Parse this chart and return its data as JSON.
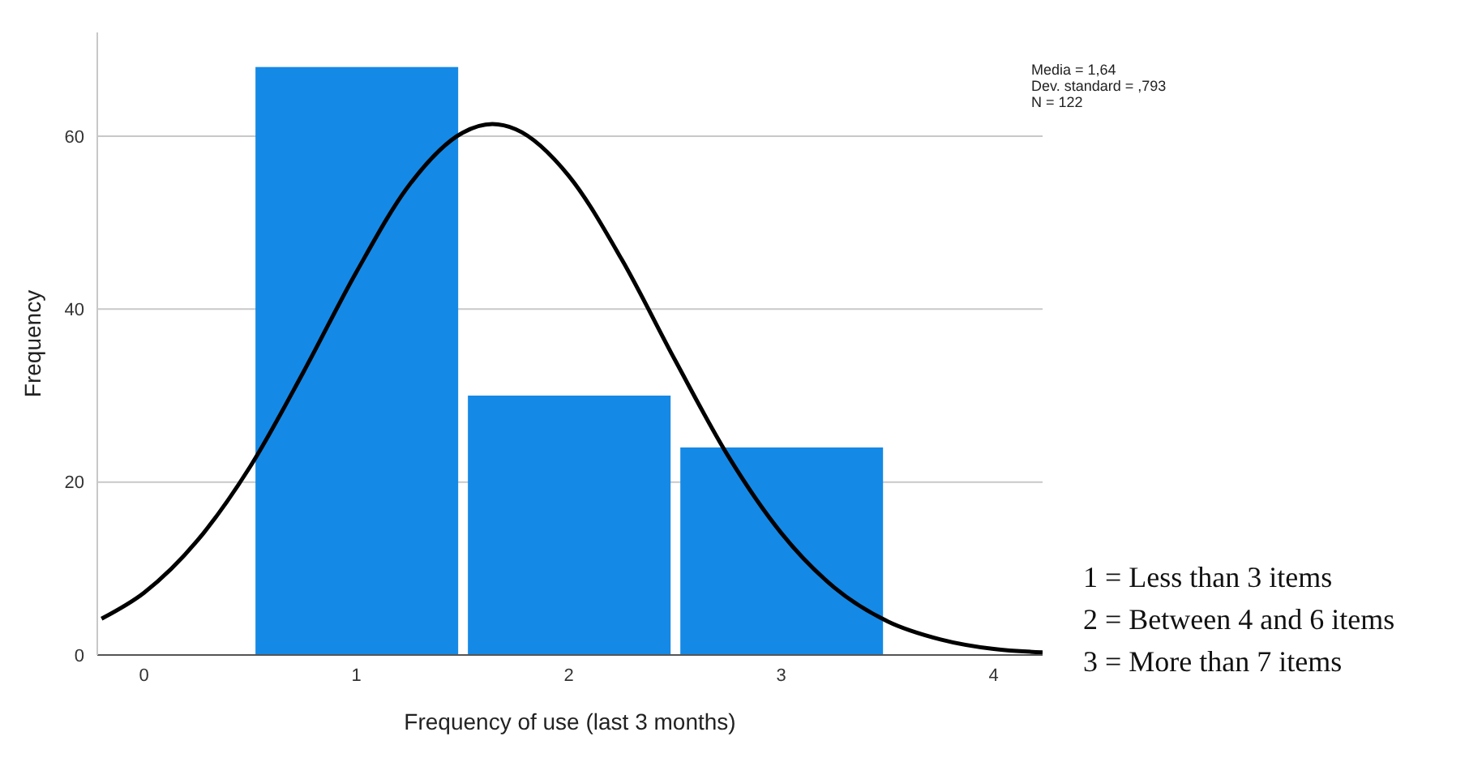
{
  "chart_data": {
    "type": "histogram",
    "xlabel": "Frequency of use (last 3 months)",
    "ylabel": "Frequency",
    "bins": [
      0.5,
      1.5,
      2.5,
      3.5
    ],
    "values": [
      68,
      30,
      24
    ],
    "color": "#1589e6",
    "series": [
      {
        "type": "line",
        "color": "#000000",
        "x": [
          -0.2,
          0,
          0.25,
          0.5,
          0.75,
          1,
          1.25,
          1.5,
          1.64,
          1.75,
          2,
          2.25,
          2.5,
          2.75,
          3,
          3.25,
          3.5,
          3.75,
          4,
          4.23
        ],
        "values": [
          4.2,
          7.2,
          13.2,
          21.8,
          32.7,
          44.3,
          54.4,
          60.4,
          61.4,
          60.8,
          55.4,
          45.7,
          34.1,
          23,
          14.1,
          7.8,
          3.9,
          1.8,
          0.7,
          0.3
        ]
      }
    ],
    "xlim": [
      -0.22,
      4.23
    ],
    "xticks": [
      0,
      1,
      2,
      3,
      4
    ],
    "ylim": [
      0,
      72
    ],
    "yticks": [
      0,
      20,
      40,
      60
    ],
    "grid": "y",
    "legend": false,
    "annotations": [
      "Media = 1,64",
      "Dev. standard = ,793",
      "N = 122",
      "1 = Less than 3 items",
      "2 = Between 4 and 6 items",
      "3 = More than 7 items"
    ]
  }
}
